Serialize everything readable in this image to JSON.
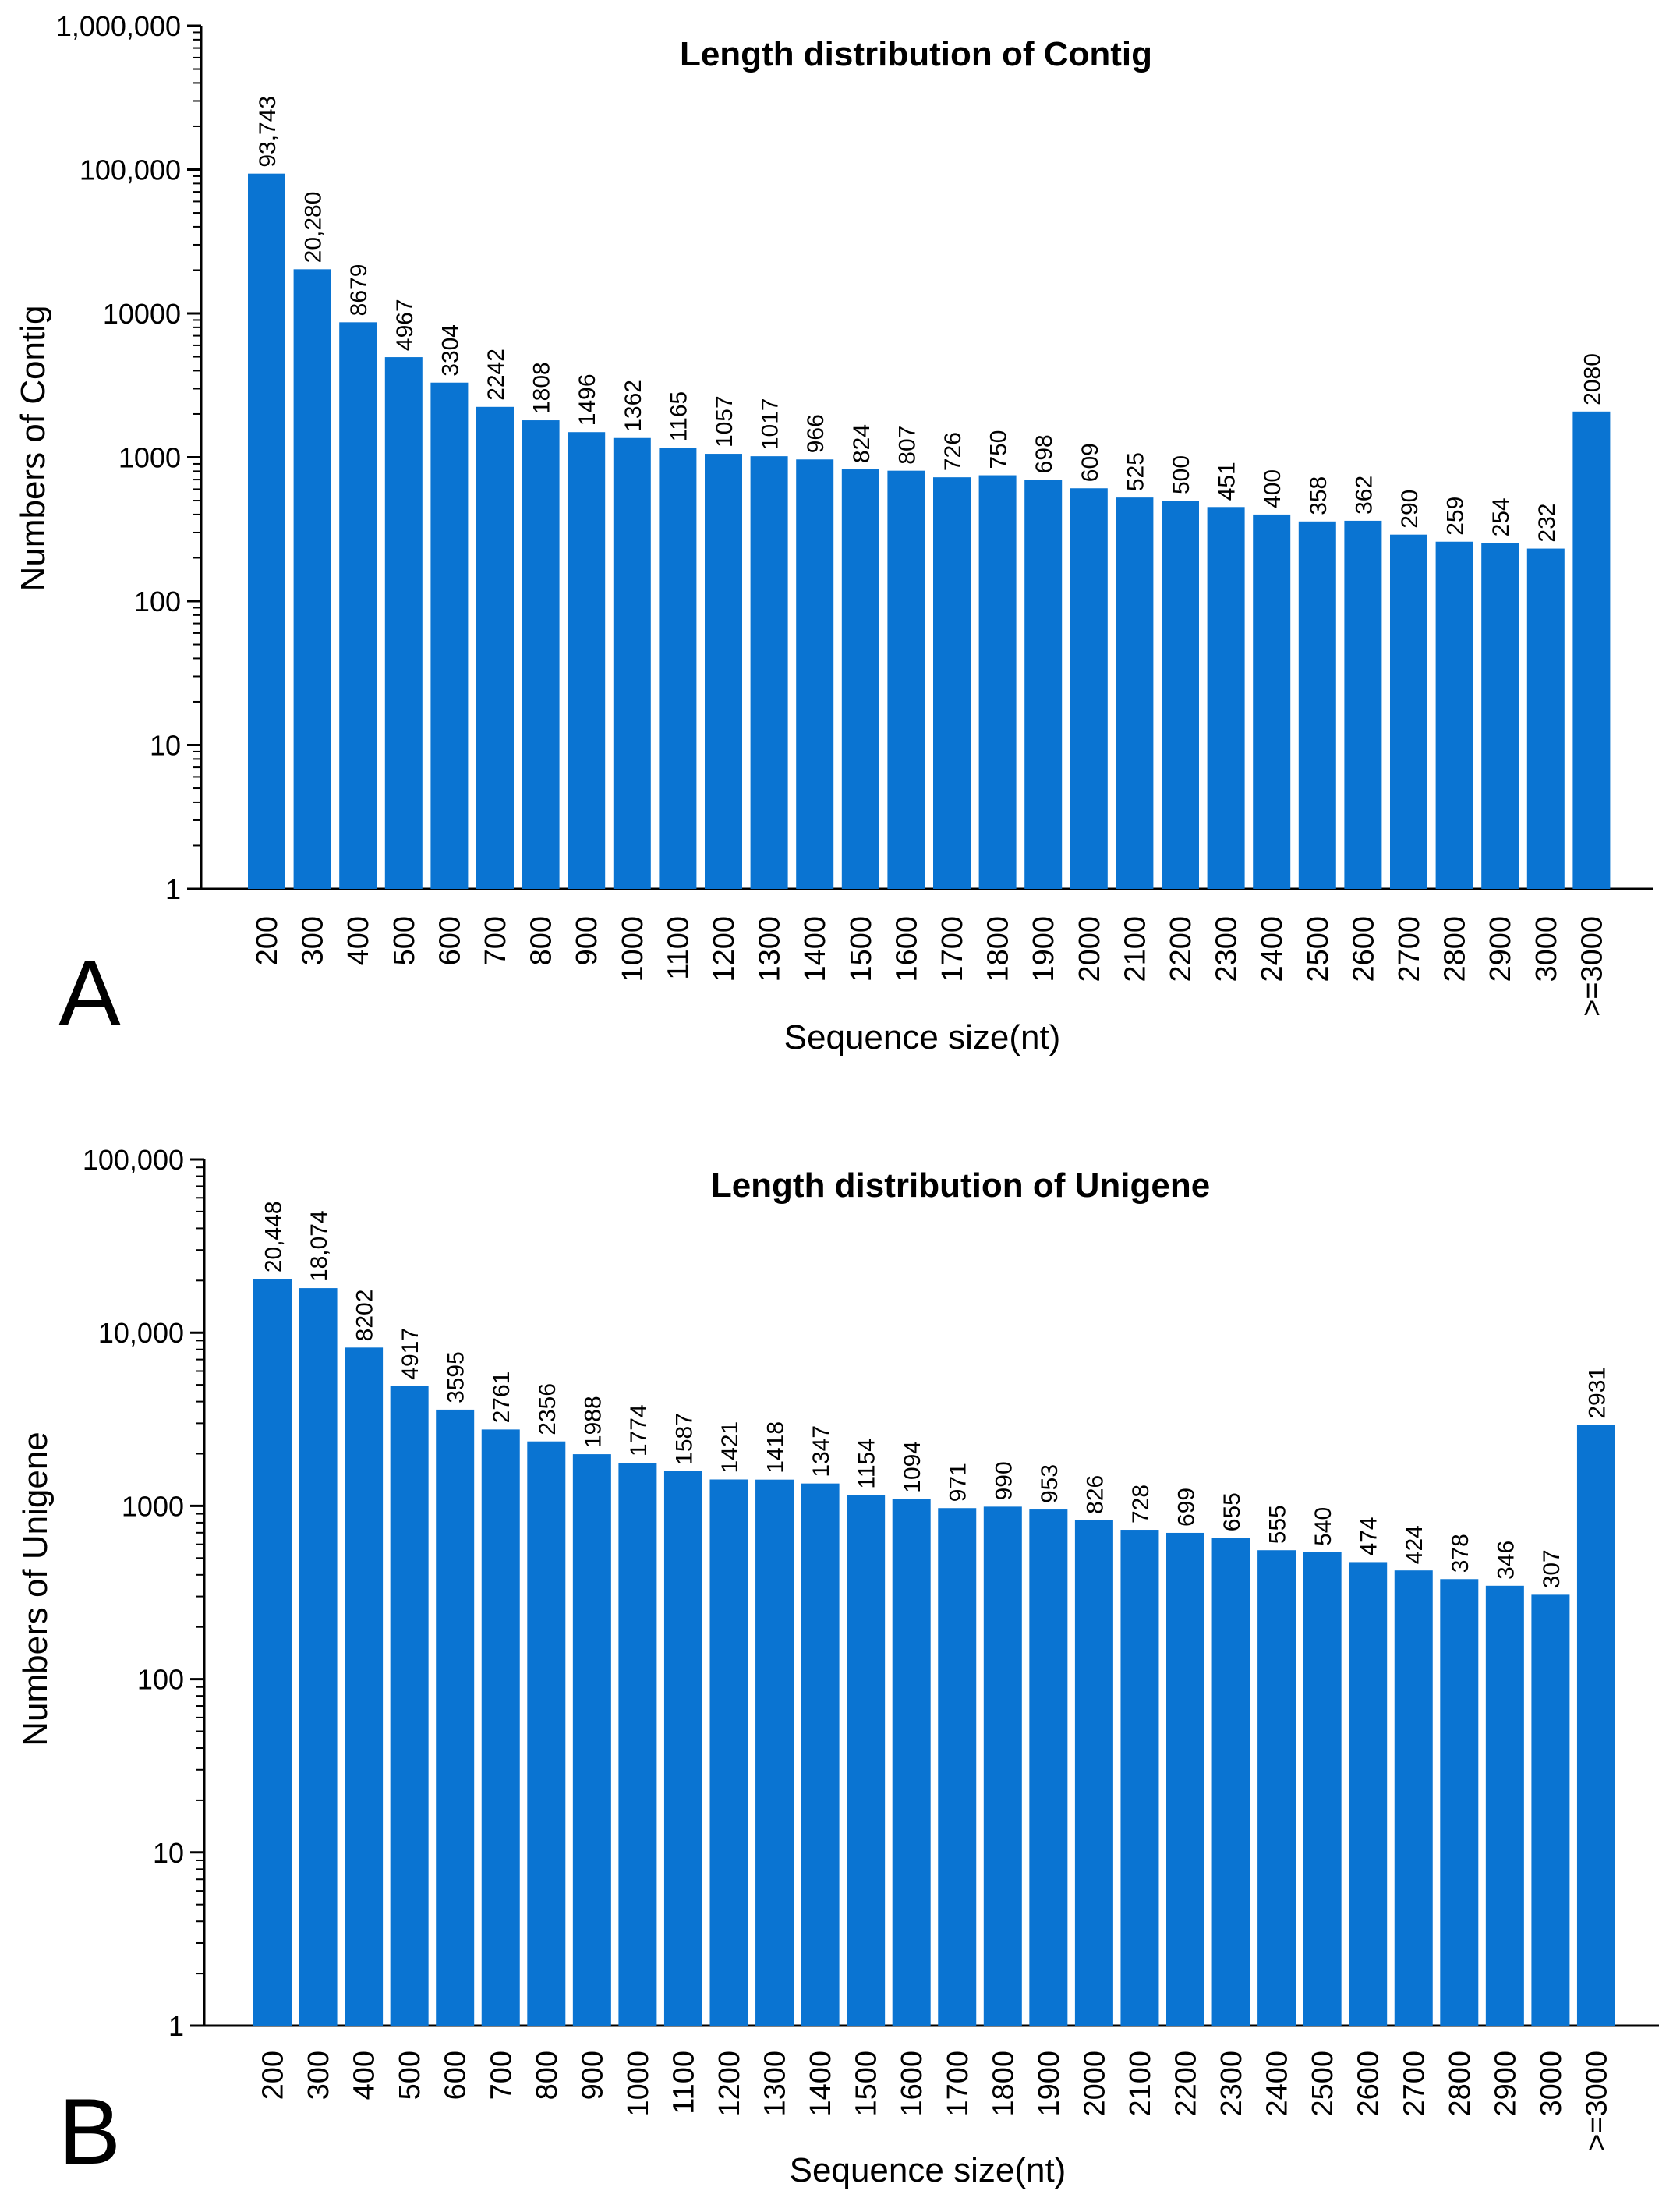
{
  "chart_data": [
    {
      "type": "bar",
      "panel_letter": "A",
      "title": "Length distribution of Contig",
      "xlabel": "Sequence size(nt)",
      "ylabel": "Numbers of Contig",
      "yscale": "log",
      "ylim": [
        1,
        1000000
      ],
      "y_tick_values": [
        1,
        10,
        100,
        1000,
        10000,
        100000,
        1000000
      ],
      "y_tick_labels": [
        "1",
        "10",
        "100",
        "1000",
        "10000",
        "100,000",
        "1,000,000"
      ],
      "categories": [
        "200",
        "300",
        "400",
        "500",
        "600",
        "700",
        "800",
        "900",
        "1000",
        "1100",
        "1200",
        "1300",
        "1400",
        "1500",
        "1600",
        "1700",
        "1800",
        "1900",
        "2000",
        "2100",
        "2200",
        "2300",
        "2400",
        "2500",
        "2600",
        "2700",
        "2800",
        "2900",
        "3000",
        ">=3000"
      ],
      "values": [
        93743,
        20280,
        8679,
        4967,
        3304,
        2242,
        1808,
        1496,
        1362,
        1165,
        1057,
        1017,
        966,
        824,
        807,
        726,
        750,
        698,
        609,
        525,
        500,
        451,
        400,
        358,
        362,
        290,
        259,
        254,
        232,
        2080
      ],
      "data_labels": [
        "93,743",
        "20,280",
        "8679",
        "4967",
        "3304",
        "2242",
        "1808",
        "1496",
        "1362",
        "1165",
        "1057",
        "1017",
        "966",
        "824",
        "807",
        "726",
        "750",
        "698",
        "609",
        "525",
        "500",
        "451",
        "400",
        "358",
        "362",
        "290",
        "259",
        "254",
        "232",
        "2080"
      ],
      "bar_color": "#0a74d2",
      "grid": false
    },
    {
      "type": "bar",
      "panel_letter": "B",
      "title": "Length distribution of Unigene",
      "xlabel": "Sequence size(nt)",
      "ylabel": "Numbers of  Unigene",
      "yscale": "log",
      "ylim": [
        1,
        100000
      ],
      "y_tick_values": [
        1,
        10,
        100,
        1000,
        10000,
        100000
      ],
      "y_tick_labels": [
        "1",
        "10",
        "100",
        "1000",
        "10,000",
        "100,000"
      ],
      "categories": [
        "200",
        "300",
        "400",
        "500",
        "600",
        "700",
        "800",
        "900",
        "1000",
        "1100",
        "1200",
        "1300",
        "1400",
        "1500",
        "1600",
        "1700",
        "1800",
        "1900",
        "2000",
        "2100",
        "2200",
        "2300",
        "2400",
        "2500",
        "2600",
        "2700",
        "2800",
        "2900",
        "3000",
        ">=3000"
      ],
      "values": [
        20448,
        18074,
        8202,
        4917,
        3595,
        2761,
        2356,
        1988,
        1774,
        1587,
        1421,
        1418,
        1347,
        1154,
        1094,
        971,
        990,
        953,
        826,
        728,
        699,
        655,
        555,
        540,
        474,
        424,
        378,
        346,
        307,
        2931
      ],
      "data_labels": [
        "20,448",
        "18,074",
        "8202",
        "4917",
        "3595",
        "2761",
        "2356",
        "1988",
        "1774",
        "1587",
        "1421",
        "1418",
        "1347",
        "1154",
        "1094",
        "971",
        "990",
        "953",
        "826",
        "728",
        "699",
        "655",
        "555",
        "540",
        "474",
        "424",
        "378",
        "346",
        "307",
        "2931"
      ],
      "bar_color": "#0a74d2",
      "grid": false
    }
  ]
}
